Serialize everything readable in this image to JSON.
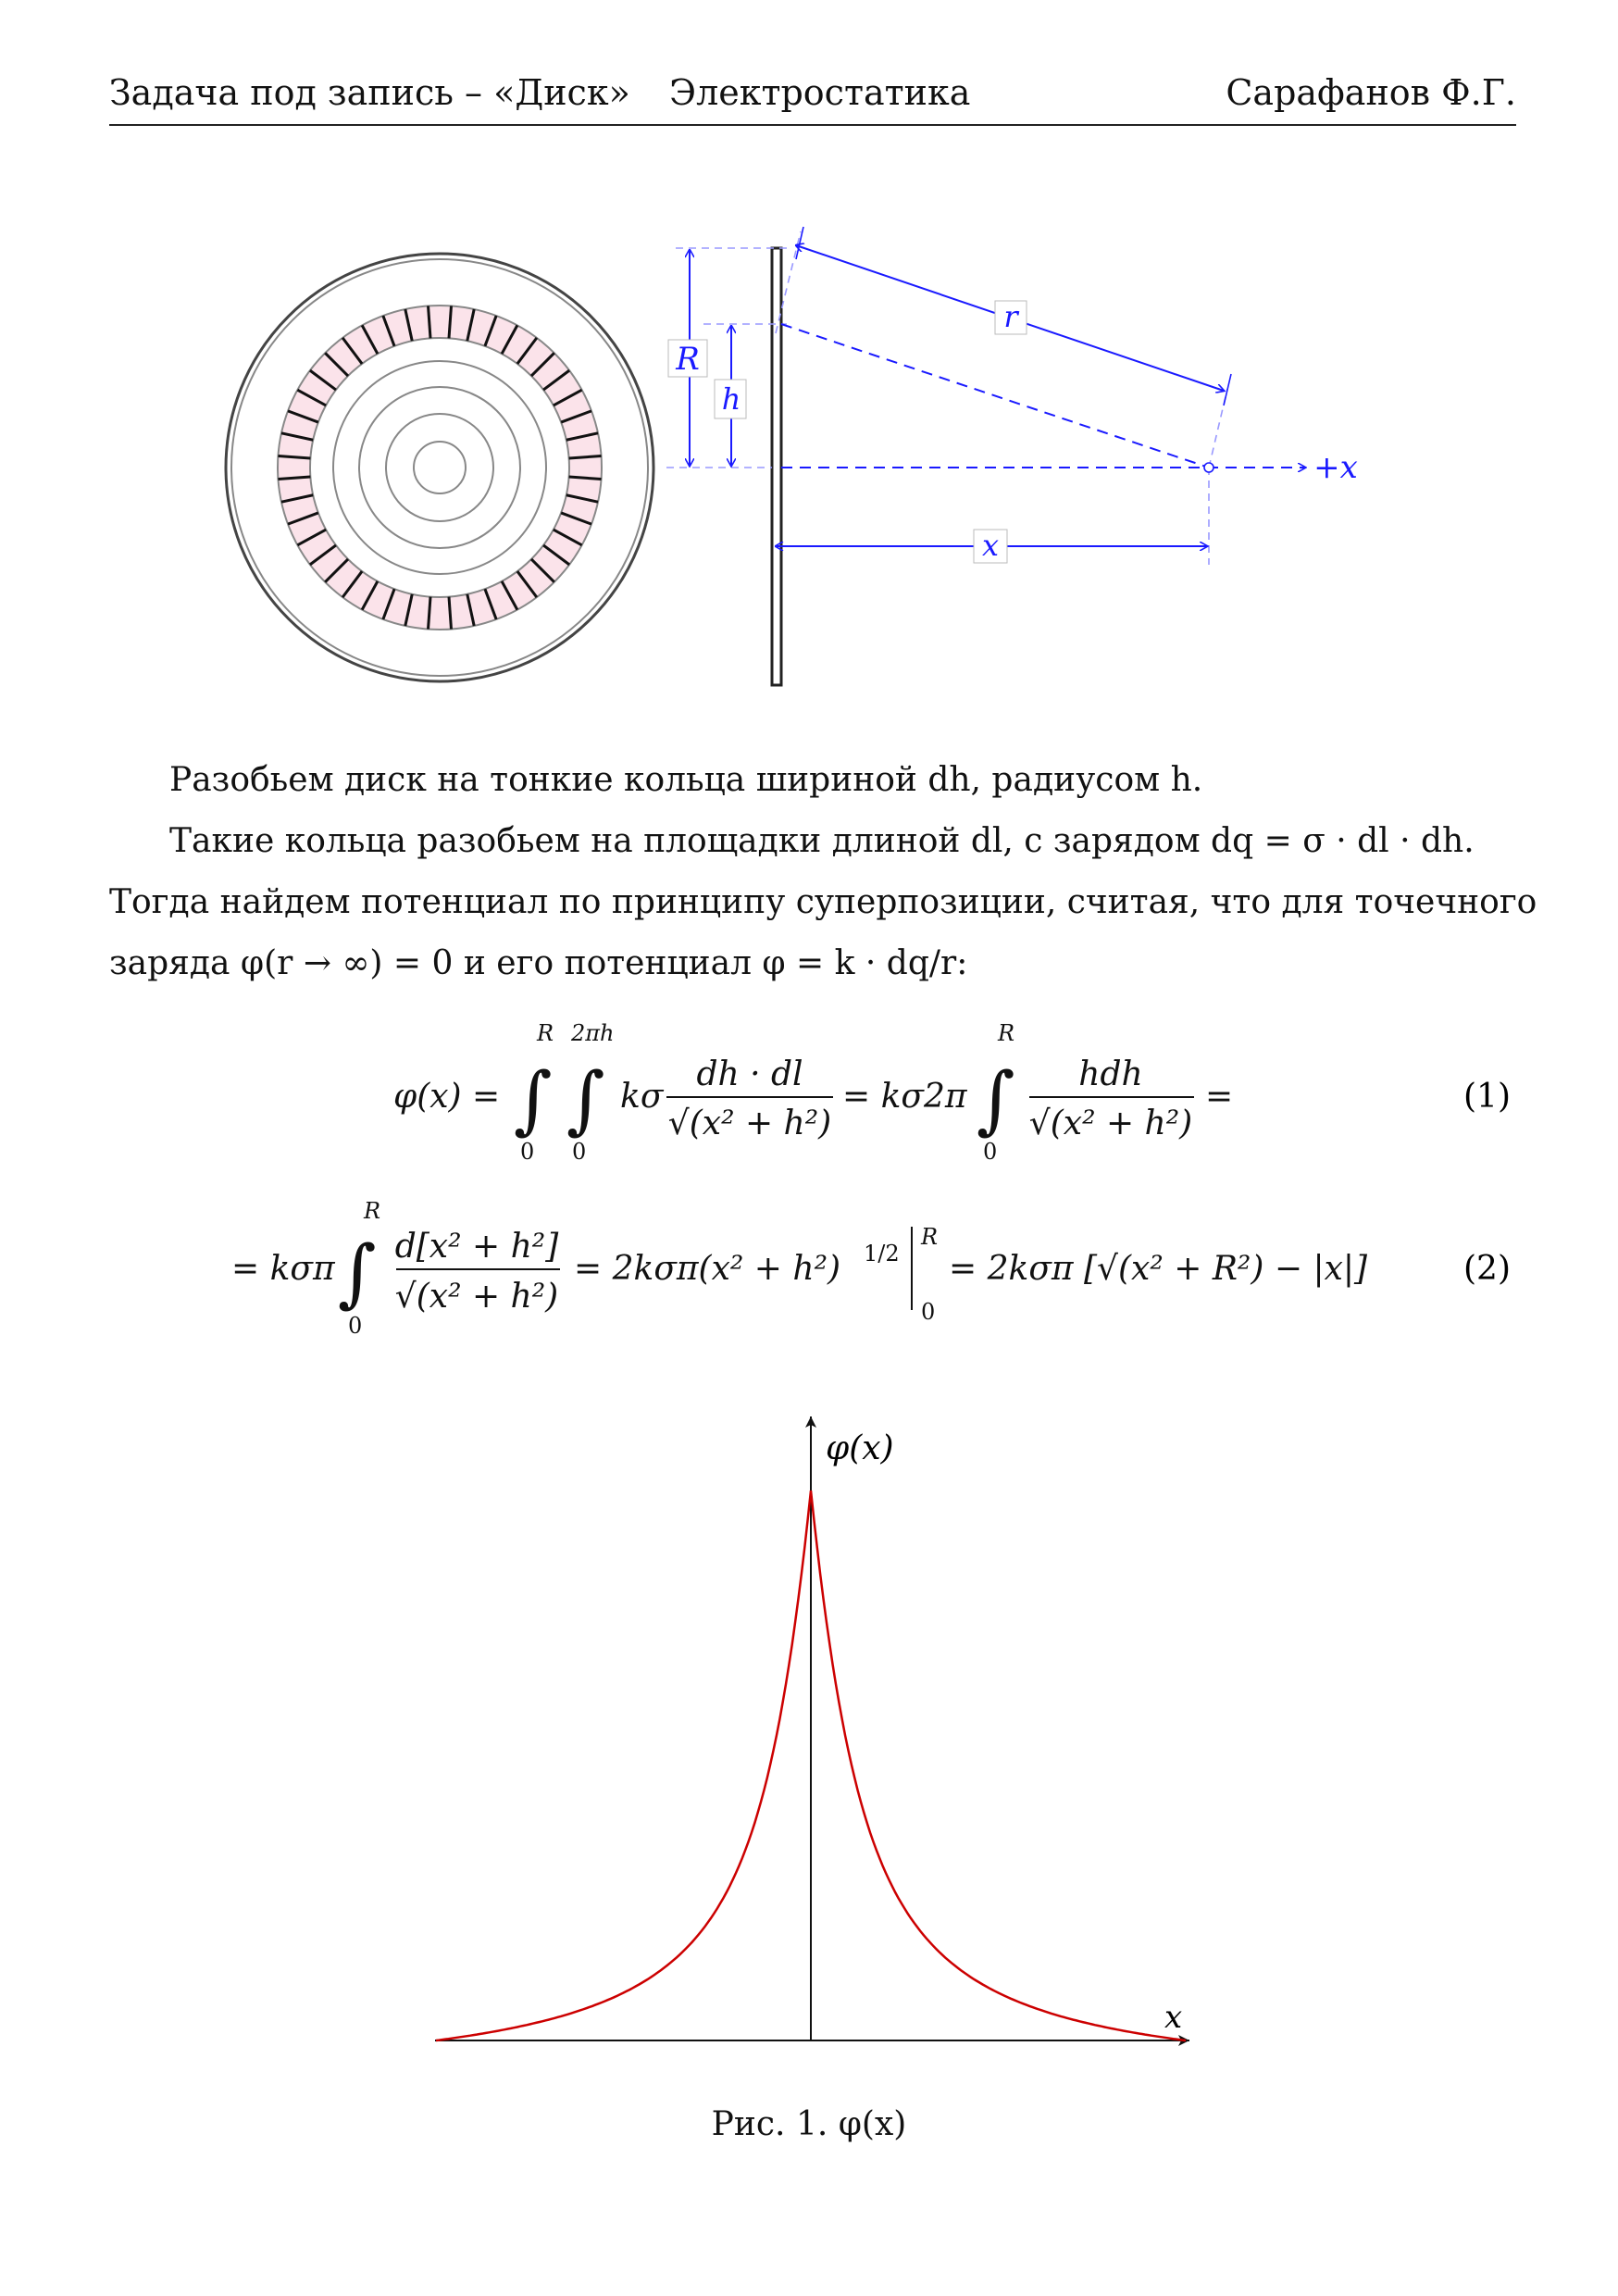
{
  "header": {
    "left": "Задача под запись – «Диск»",
    "center": "Электростатика",
    "right": "Сарафанов Ф.Г."
  },
  "diagram": {
    "labels": {
      "R": "R",
      "h": "h",
      "r": "r",
      "x": "x",
      "plus_x": "+x"
    },
    "colors": {
      "annotation": "#1a1aff",
      "ring_fill": "#fbe3ea",
      "disk": "#222222"
    }
  },
  "text": {
    "p1": "Разобьем диск на тонкие кольца шириной dh, радиусом h.",
    "p2": "Такие кольца разобьем на площадки длиной dl, с зарядом dq = σ · dl · dh.",
    "p3": "Тогда найдем потенциал по принципу суперпозиции, считая, что для точечного",
    "p4": "заряда φ(r → ∞) = 0 и его потенциал φ = k · dq/r:"
  },
  "equations": [
    {
      "number": "(1)",
      "lhs": "φ(x) =",
      "int1_upper": "R",
      "int1_lower": "0",
      "int2_upper": "2πh",
      "int2_lower": "0",
      "coef": "kσ",
      "frac_num": "dh · dl",
      "frac_den": "√(x² + h²)",
      "eq2": "= kσ2π",
      "int3_upper": "R",
      "int3_lower": "0",
      "frac2_num": "hdh",
      "frac2_den": "√(x² + h²)",
      "tail": "="
    },
    {
      "number": "(2)",
      "lhs": "= kσπ",
      "int_upper": "R",
      "int_lower": "0",
      "frac_num": "d[x² + h²]",
      "frac_den": "√(x² + h²)",
      "mid": "= 2kσπ(x² + h²)",
      "exp": "1/2",
      "eval_upper": "R",
      "eval_lower": "0",
      "rhs": "= 2kσπ [√(x² + R²) − |x|]"
    }
  ],
  "chart_data": {
    "type": "line",
    "title": "",
    "xlabel": "x",
    "ylabel": "φ(x)",
    "function": "2kσπ(√(x² + R²) − |x|)",
    "series": [
      {
        "x": [
          -3.0,
          -2.5,
          -2.0,
          -1.5,
          -1.0,
          -0.75,
          -0.5,
          -0.25,
          0.0,
          0.25,
          0.5,
          0.75,
          1.0,
          1.5,
          2.0,
          2.5,
          3.0
        ],
        "y": [
          0.0,
          0.03,
          0.08,
          0.16,
          0.29,
          0.39,
          0.52,
          0.72,
          1.0,
          0.72,
          0.52,
          0.39,
          0.29,
          0.16,
          0.08,
          0.03,
          0.0
        ]
      }
    ],
    "line_color": "#cc0000",
    "grid": false
  },
  "caption": "Рис. 1. φ(x)"
}
